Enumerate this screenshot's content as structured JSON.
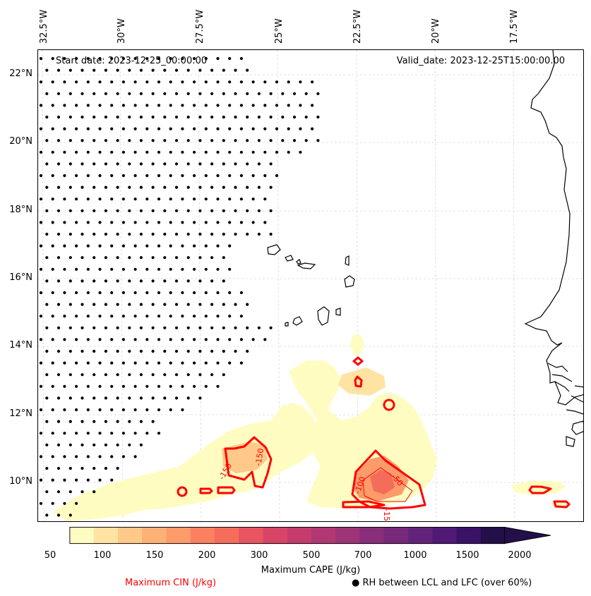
{
  "header": {
    "start_date": "Start date: 2023-12-25_00:00:00",
    "valid_date": "Valid_date: 2023-12-25T15:00:00.00"
  },
  "map": {
    "lon_ticks": [
      "32.5°W",
      "30°W",
      "27.5°W",
      "25°W",
      "22.5°W",
      "20°W",
      "17.5°W"
    ],
    "lat_ticks": [
      "22°N",
      "20°N",
      "18°N",
      "16°N",
      "14°N",
      "12°N",
      "10°N"
    ],
    "cin_contour_labels": [
      "-150",
      "-150",
      "-50",
      "-100",
      "-15"
    ],
    "colors": {
      "coastline": "#000000",
      "cin_contour": "#ff0000",
      "gridline": "#cccccc",
      "stipple": "#000000"
    }
  },
  "colorbar": {
    "levels": [
      "50",
      "100",
      "150",
      "200",
      "300",
      "500",
      "700",
      "1000",
      "1500",
      "2000"
    ],
    "colors": [
      "#fffcc2",
      "#ffe3a3",
      "#ffc98a",
      "#feb177",
      "#fd9b6b",
      "#fb8161",
      "#f46d5b",
      "#e8545f",
      "#d84465",
      "#c53c6c",
      "#b13873",
      "#9d3477",
      "#892e7a",
      "#77297b",
      "#64237b",
      "#501a76",
      "#3a1369",
      "#230f4a"
    ],
    "label": "Maximum CAPE (J/kg)"
  },
  "legend": {
    "cin_label": "Maximum CIN (J/kg)",
    "cin_color": "#ff0000",
    "rh_label": "RH between LCL and LFC (over 60%)",
    "rh_marker": "●"
  }
}
